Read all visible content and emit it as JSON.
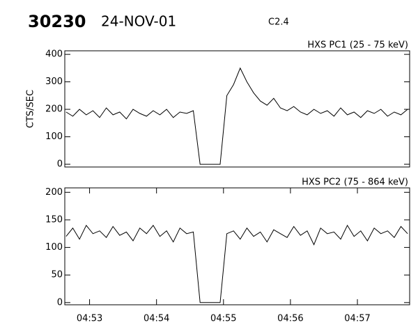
{
  "header": {
    "id": "30230",
    "date": "24-NOV-01",
    "class": "C2.4"
  },
  "chart_data": [
    {
      "type": "line",
      "title": "HXS PC1 (25 - 75 keV)",
      "y_label": "CTS/SEC",
      "color": "#000000",
      "x": [
        52.65,
        52.75,
        52.85,
        52.95,
        53.05,
        53.15,
        53.25,
        53.35,
        53.45,
        53.55,
        53.65,
        53.75,
        53.85,
        53.95,
        54.05,
        54.15,
        54.25,
        54.35,
        54.45,
        54.55,
        54.65,
        54.75,
        54.85,
        54.95,
        55.05,
        55.15,
        55.25,
        55.35,
        55.45,
        55.55,
        55.65,
        55.75,
        55.85,
        55.95,
        56.05,
        56.15,
        56.25,
        56.35,
        56.45,
        56.55,
        56.65,
        56.75,
        56.85,
        56.95,
        57.05,
        57.15,
        57.25,
        57.35,
        57.45,
        57.55,
        57.65,
        57.75
      ],
      "values": [
        190,
        175,
        200,
        180,
        195,
        170,
        205,
        180,
        190,
        165,
        200,
        185,
        175,
        195,
        180,
        200,
        170,
        190,
        185,
        195,
        0,
        0,
        0,
        0,
        250,
        290,
        350,
        300,
        260,
        230,
        215,
        240,
        205,
        195,
        210,
        190,
        180,
        200,
        185,
        195,
        175,
        205,
        180,
        190,
        170,
        195,
        185,
        200,
        175,
        190,
        180,
        200
      ],
      "xlim": [
        52.63,
        57.78
      ],
      "ylim": [
        -10,
        413
      ],
      "yticks": [
        0,
        100,
        200,
        300,
        400
      ]
    },
    {
      "type": "line",
      "title": "HXS PC2 (75 - 864 keV)",
      "color": "#000000",
      "x": [
        52.65,
        52.75,
        52.85,
        52.95,
        53.05,
        53.15,
        53.25,
        53.35,
        53.45,
        53.55,
        53.65,
        53.75,
        53.85,
        53.95,
        54.05,
        54.15,
        54.25,
        54.35,
        54.45,
        54.55,
        54.65,
        54.75,
        54.85,
        54.95,
        55.05,
        55.15,
        55.25,
        55.35,
        55.45,
        55.55,
        55.65,
        55.75,
        55.85,
        55.95,
        56.05,
        56.15,
        56.25,
        56.35,
        56.45,
        56.55,
        56.65,
        56.75,
        56.85,
        56.95,
        57.05,
        57.15,
        57.25,
        57.35,
        57.45,
        57.55,
        57.65,
        57.75
      ],
      "values": [
        120,
        135,
        115,
        140,
        125,
        130,
        118,
        138,
        122,
        128,
        112,
        135,
        125,
        140,
        120,
        130,
        110,
        135,
        125,
        128,
        0,
        0,
        0,
        0,
        125,
        130,
        115,
        135,
        120,
        128,
        110,
        132,
        125,
        118,
        138,
        122,
        130,
        105,
        135,
        125,
        128,
        115,
        140,
        120,
        130,
        112,
        135,
        125,
        130,
        118,
        138,
        125
      ],
      "xlim": [
        52.63,
        57.78
      ],
      "ylim": [
        -4,
        208
      ],
      "yticks": [
        0,
        50,
        100,
        150,
        200
      ],
      "xticks": [
        {
          "value": 53,
          "label": "04:53"
        },
        {
          "value": 54,
          "label": "04:54"
        },
        {
          "value": 55,
          "label": "04:55"
        },
        {
          "value": 56,
          "label": "04:56"
        },
        {
          "value": 57,
          "label": "04:57"
        }
      ]
    }
  ]
}
